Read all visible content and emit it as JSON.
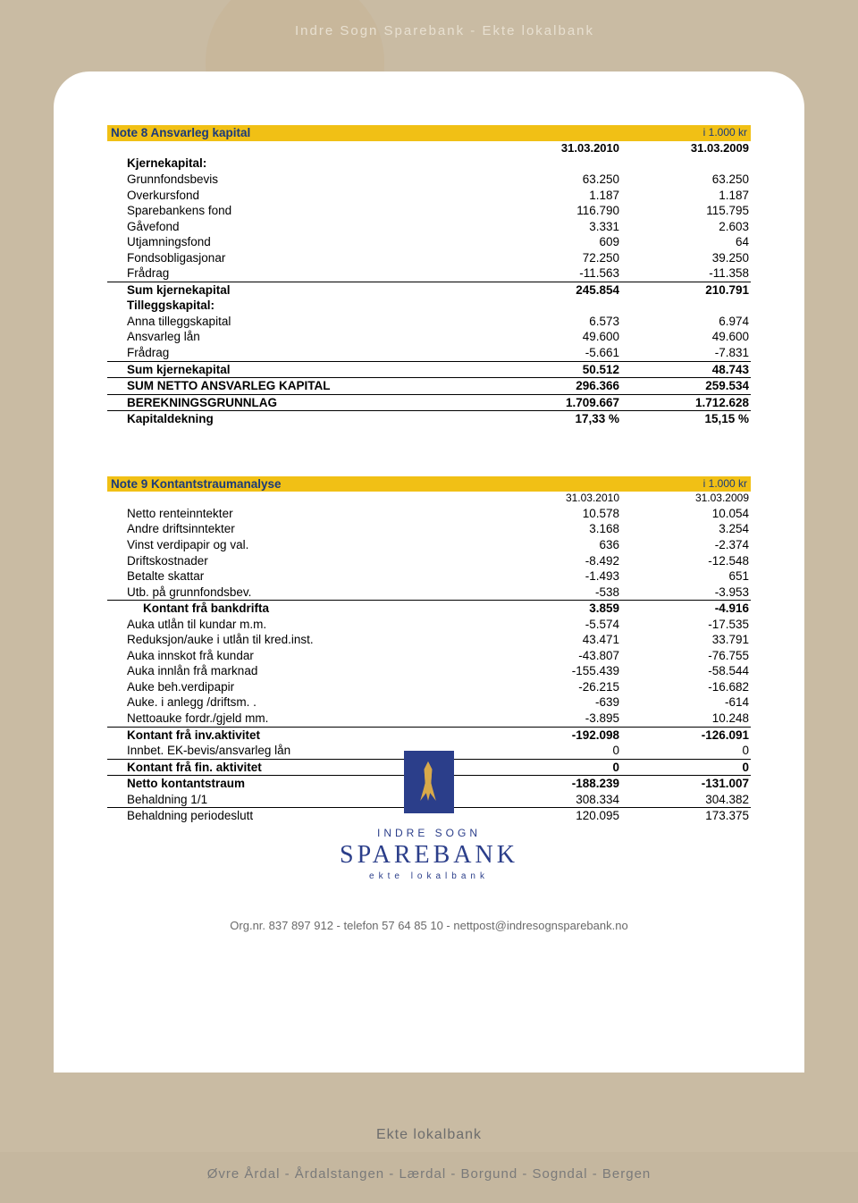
{
  "header": "Indre Sogn Sparebank - Ekte lokalbank",
  "note8": {
    "title": "Note 8  Ansvarleg kapital",
    "unit": "i 1.000 kr",
    "col1": "31.03.2010",
    "col2": "31.03.2009",
    "rows": [
      {
        "label": "Kjernekapital:",
        "v1": "",
        "v2": "",
        "bold": true
      },
      {
        "label": "Grunnfondsbevis",
        "v1": "63.250",
        "v2": "63.250"
      },
      {
        "label": "Overkursfond",
        "v1": "1.187",
        "v2": "1.187"
      },
      {
        "label": "Sparebankens fond",
        "v1": "116.790",
        "v2": "115.795"
      },
      {
        "label": "Gåvefond",
        "v1": "3.331",
        "v2": "2.603"
      },
      {
        "label": "Utjamningsfond",
        "v1": "609",
        "v2": "64"
      },
      {
        "label": "Fondsobligasjonar",
        "v1": "72.250",
        "v2": "39.250"
      },
      {
        "label": "Frådrag",
        "v1": "-11.563",
        "v2": "-11.358",
        "uline": true
      },
      {
        "label": "Sum kjernekapital",
        "v1": "245.854",
        "v2": "210.791",
        "bold": true
      },
      {
        "label": "Tilleggskapital:",
        "v1": "",
        "v2": "",
        "bold": true
      },
      {
        "label": "Anna tilleggskapital",
        "v1": "6.573",
        "v2": "6.974"
      },
      {
        "label": "Ansvarleg lån",
        "v1": "49.600",
        "v2": "49.600"
      },
      {
        "label": "Frådrag",
        "v1": "-5.661",
        "v2": "-7.831",
        "uline": true
      },
      {
        "label": "Sum kjernekapital",
        "v1": "50.512",
        "v2": "48.743",
        "bold": true,
        "uline": true
      },
      {
        "label": "SUM NETTO ANSVARLEG KAPITAL",
        "v1": "296.366",
        "v2": "259.534",
        "bold": true,
        "uline": true
      },
      {
        "label": "BEREKNINGSGRUNNLAG",
        "v1": "1.709.667",
        "v2": "1.712.628",
        "bold": true,
        "uline": true
      },
      {
        "label": "Kapitaldekning",
        "v1": "17,33 %",
        "v2": "15,15 %",
        "bold": true
      }
    ]
  },
  "note9": {
    "title": "Note 9  Kontantstraumanalyse",
    "unit": "i 1.000 kr",
    "col1": "31.03.2010",
    "col2": "31.03.2009",
    "rows": [
      {
        "label": "Netto renteinntekter",
        "v1": "10.578",
        "v2": "10.054"
      },
      {
        "label": "Andre driftsinntekter",
        "v1": "3.168",
        "v2": "3.254"
      },
      {
        "label": "Vinst verdipapir og val.",
        "v1": "636",
        "v2": "-2.374"
      },
      {
        "label": "Driftskostnader",
        "v1": "-8.492",
        "v2": "-12.548"
      },
      {
        "label": "Betalte skattar",
        "v1": "-1.493",
        "v2": "651"
      },
      {
        "label": "Utb. på grunnfondsbev.",
        "v1": "-538",
        "v2": "-3.953",
        "uline": true
      },
      {
        "label": "Kontant frå bankdrifta",
        "v1": "3.859",
        "v2": "-4.916",
        "bold": true,
        "sub": true
      },
      {
        "label": "Auka utlån til kundar m.m.",
        "v1": "-5.574",
        "v2": "-17.535"
      },
      {
        "label": "Reduksjon/auke i utlån til kred.inst.",
        "v1": "43.471",
        "v2": "33.791"
      },
      {
        "label": "Auka innskot frå kundar",
        "v1": "-43.807",
        "v2": "-76.755"
      },
      {
        "label": "Auka innlån frå marknad",
        "v1": "-155.439",
        "v2": "-58.544"
      },
      {
        "label": "Auke beh.verdipapir",
        "v1": "-26.215",
        "v2": "-16.682"
      },
      {
        "label": "Auke. i anlegg /driftsm. .",
        "v1": "-639",
        "v2": "-614"
      },
      {
        "label": "Nettoauke fordr./gjeld mm.",
        "v1": "-3.895",
        "v2": "10.248",
        "uline": true
      },
      {
        "label": "Kontant frå inv.aktivitet",
        "v1": "-192.098",
        "v2": "-126.091",
        "bold": true
      },
      {
        "label": "Innbet. EK-bevis/ansvarleg lån",
        "v1": "0",
        "v2": "0",
        "uline": true
      },
      {
        "label": "Kontant frå fin. aktivitet",
        "v1": "0",
        "v2": "0",
        "bold": true,
        "uline": true
      },
      {
        "label": "Netto kontantstraum",
        "v1": "-188.239",
        "v2": "-131.007",
        "bold": true
      },
      {
        "label": "Behaldning 1/1",
        "v1": "308.334",
        "v2": "304.382",
        "uline": true
      },
      {
        "label": "Behaldning periodeslutt",
        "v1": "120.095",
        "v2": "173.375"
      }
    ]
  },
  "logo": {
    "line1": "INDRE SOGN",
    "main": "SPAREBANK",
    "line2": "ekte lokalbank",
    "org": "Org.nr. 837 897 912  -  telefon 57 64 85 10  -  nettpost@indresognsparebank.no"
  },
  "footer": {
    "tag": "Ekte lokalbank",
    "locations": "Øvre Årdal  -  Årdalstangen  -  Lærdal  -  Borgund  -  Sogndal  -  Bergen"
  },
  "colors": {
    "page_bg": "#c9bba3",
    "paper_bg": "#ffffff",
    "note_header_bg": "#f1c015",
    "note_header_fg": "#1a3a7a",
    "logo_badge": "#2b3e8a",
    "footer_fg": "#7a7a7a"
  }
}
